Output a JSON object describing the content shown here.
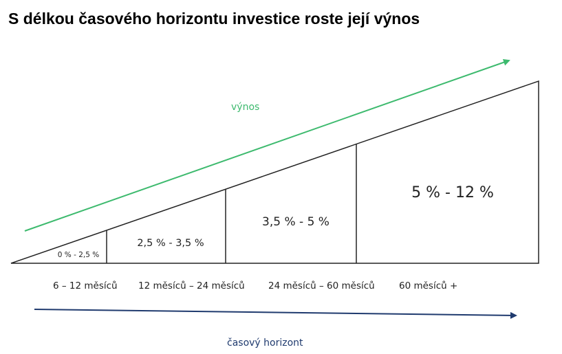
{
  "title": "S délkou časového horizontu investice roste její výnos",
  "arrows": {
    "yield_label": "výnos",
    "time_label": "časový horizont"
  },
  "segments": [
    {
      "return_range": "0 % - 2,5 %",
      "period": "6 – 12 měsíců"
    },
    {
      "return_range": "2,5 % - 3,5 %",
      "period": "12 měsíců – 24 měsíců"
    },
    {
      "return_range": "3,5 % - 5 %",
      "period": "24 měsíců – 60 měsíců"
    },
    {
      "return_range": "5 % - 12 %",
      "period": "60 měsíců +"
    }
  ],
  "colors": {
    "yield_arrow": "#3dba6e",
    "time_arrow": "#1f3a6e",
    "lines": "#222222",
    "title": "#000000"
  }
}
